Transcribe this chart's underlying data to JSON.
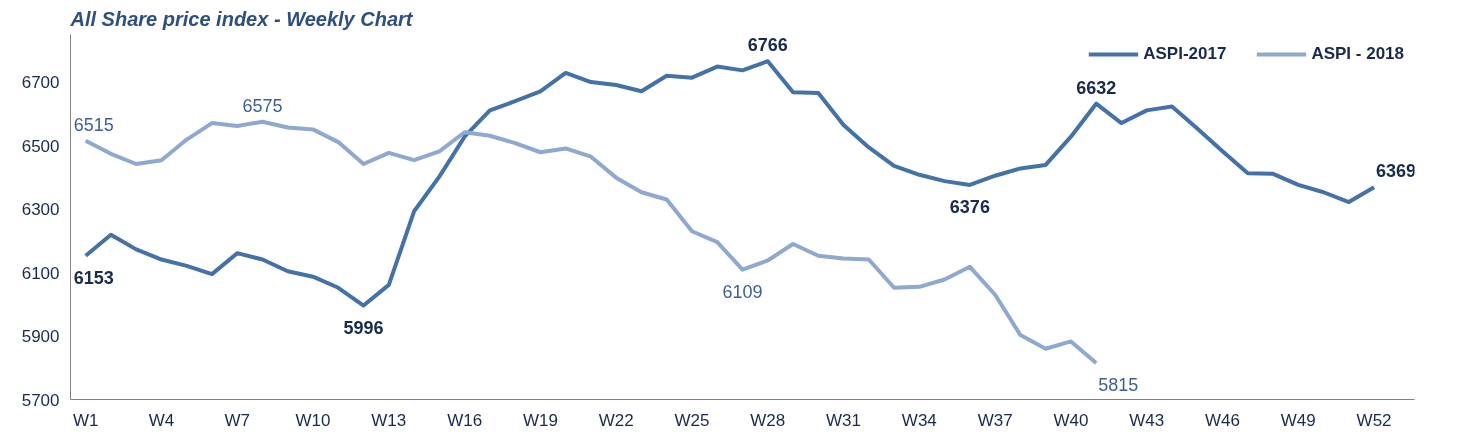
{
  "chart_data": {
    "type": "line",
    "title": "All Share price index - Weekly Chart",
    "categories": [
      "W1",
      null,
      null,
      "W4",
      null,
      null,
      "W7",
      null,
      null,
      "W10",
      null,
      null,
      "W13",
      null,
      null,
      "W16",
      null,
      null,
      "W19",
      null,
      null,
      "W22",
      null,
      null,
      "W25",
      null,
      null,
      "W28",
      null,
      null,
      "W31",
      null,
      null,
      "W34",
      null,
      null,
      "W37",
      null,
      null,
      "W40",
      null,
      null,
      "W43",
      null,
      null,
      "W46",
      null,
      null,
      "W49",
      null,
      null,
      "W52"
    ],
    "series": [
      {
        "name": "ASPI-2017",
        "color": "#4472a8",
        "values": [
          6153,
          6219,
          6173,
          6141,
          6121,
          6095,
          6161,
          6141,
          6104,
          6087,
          6052,
          5996,
          6061,
          6293,
          6402,
          6528,
          6611,
          6640,
          6671,
          6729,
          6700,
          6691,
          6671,
          6720,
          6714,
          6749,
          6737,
          6766,
          6668,
          6666,
          6565,
          6494,
          6436,
          6408,
          6388,
          6376,
          6405,
          6428,
          6439,
          6528,
          6632,
          6571,
          6611,
          6623,
          6554,
          6482,
          6413,
          6411,
          6376,
          6353,
          6322,
          6369
        ],
        "value_labels": [
          "6153",
          null,
          null,
          null,
          null,
          null,
          null,
          null,
          null,
          null,
          null,
          "5996",
          null,
          null,
          null,
          null,
          null,
          null,
          null,
          null,
          null,
          null,
          null,
          null,
          null,
          null,
          null,
          "6766",
          null,
          null,
          null,
          null,
          null,
          null,
          null,
          "6376",
          null,
          null,
          null,
          null,
          "6632",
          null,
          null,
          null,
          null,
          null,
          null,
          null,
          null,
          null,
          null,
          "6369"
        ]
      },
      {
        "name": "ASPI - 2018",
        "color": "#8fa8d0",
        "values": [
          6515,
          6474,
          6442,
          6454,
          6519,
          6571,
          6562,
          6575,
          6557,
          6551,
          6511,
          6442,
          6477,
          6454,
          6482,
          6542,
          6531,
          6508,
          6479,
          6491,
          6465,
          6399,
          6353,
          6330,
          6230,
          6196,
          6109,
          6138,
          6190,
          6153,
          6144,
          6141,
          6052,
          6055,
          6078,
          6118,
          6030,
          5903,
          5860,
          5883,
          5815,
          null,
          null,
          null,
          null,
          null,
          null,
          null,
          null,
          null,
          null,
          null
        ],
        "value_labels": [
          "6515",
          null,
          null,
          null,
          null,
          null,
          null,
          "6575",
          null,
          null,
          null,
          null,
          null,
          null,
          null,
          null,
          null,
          null,
          null,
          null,
          null,
          null,
          null,
          null,
          null,
          null,
          "6109",
          null,
          null,
          null,
          null,
          null,
          null,
          null,
          null,
          null,
          null,
          null,
          null,
          null,
          "5815",
          null,
          null,
          null,
          null,
          null,
          null,
          null,
          null,
          null,
          null,
          null
        ]
      }
    ],
    "ylim": [
      5700,
      6850
    ],
    "yticks": [
      5700,
      5900,
      6100,
      6300,
      6500,
      6700
    ],
    "grid": false,
    "legend": "top right",
    "marker": "none",
    "line_style": "solid"
  }
}
